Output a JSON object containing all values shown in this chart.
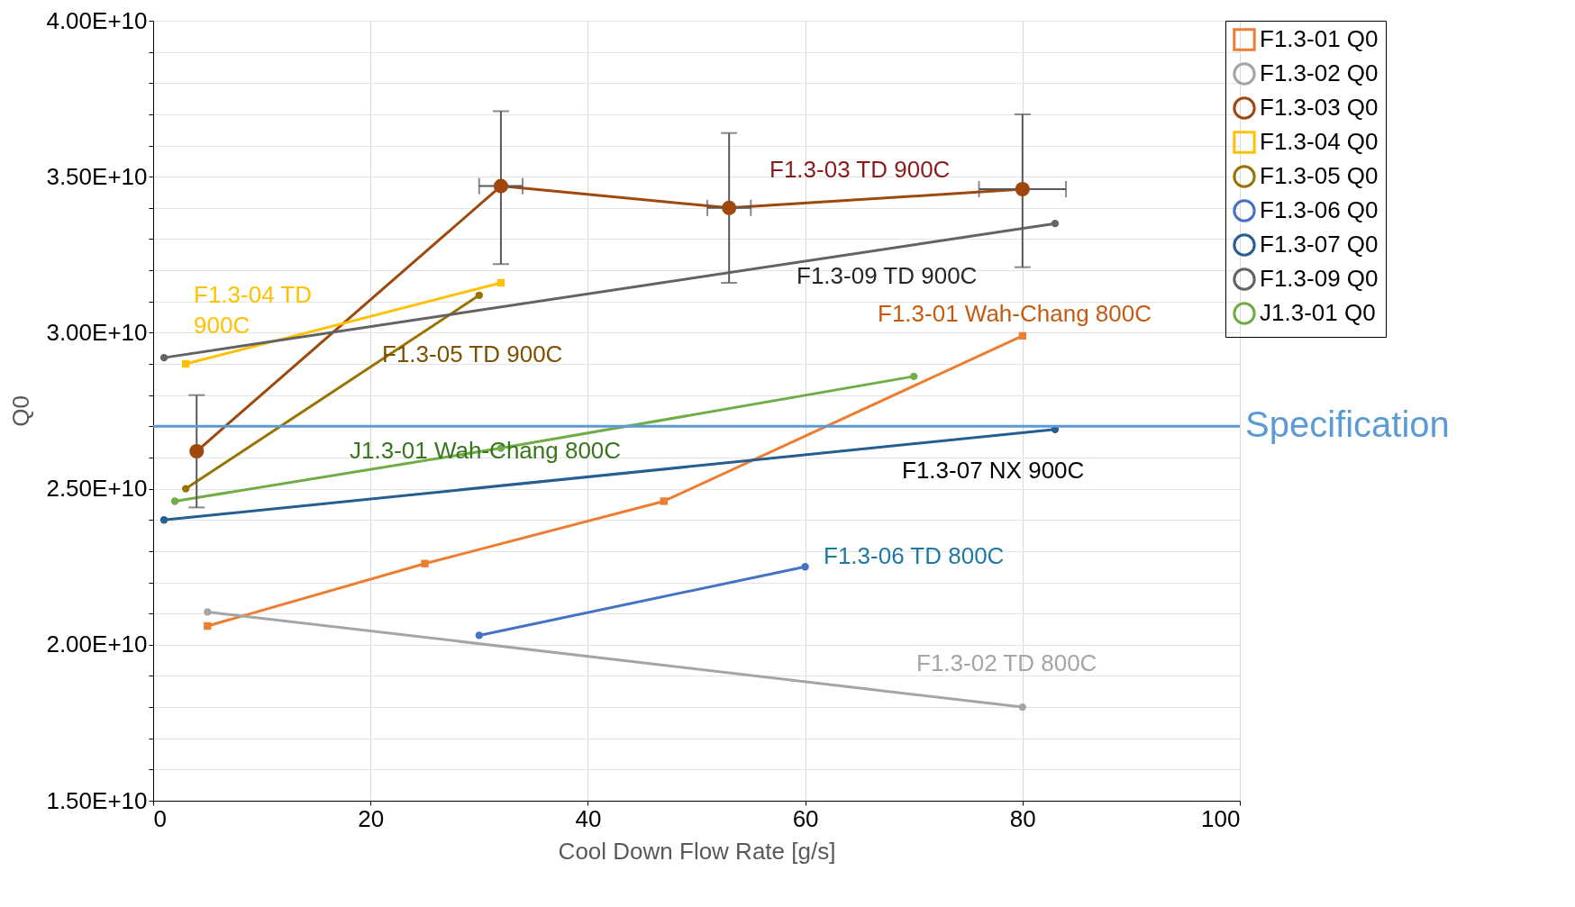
{
  "chart_data": {
    "type": "line",
    "xlabel": "Cool Down Flow Rate [g/s]",
    "ylabel": "Q0",
    "xlim": [
      0,
      100
    ],
    "xticks": [
      0,
      20,
      40,
      60,
      80,
      100
    ],
    "ylim": [
      15000000000,
      40000000000
    ],
    "yticks": [
      {
        "value": 15000000000,
        "label": "1.50E+10"
      },
      {
        "value": 16000000000,
        "label": null
      },
      {
        "value": 17000000000,
        "label": null
      },
      {
        "value": 18000000000,
        "label": null
      },
      {
        "value": 19000000000,
        "label": null
      },
      {
        "value": 20000000000,
        "label": "2.00E+10"
      },
      {
        "value": 21000000000,
        "label": null
      },
      {
        "value": 22000000000,
        "label": null
      },
      {
        "value": 23000000000,
        "label": null
      },
      {
        "value": 24000000000,
        "label": null
      },
      {
        "value": 25000000000,
        "label": "2.50E+10"
      },
      {
        "value": 26000000000,
        "label": null
      },
      {
        "value": 27000000000,
        "label": null
      },
      {
        "value": 28000000000,
        "label": null
      },
      {
        "value": 29000000000,
        "label": null
      },
      {
        "value": 30000000000,
        "label": "3.00E+10"
      },
      {
        "value": 31000000000,
        "label": null
      },
      {
        "value": 32000000000,
        "label": null
      },
      {
        "value": 33000000000,
        "label": null
      },
      {
        "value": 34000000000,
        "label": null
      },
      {
        "value": 35000000000,
        "label": "3.50E+10"
      },
      {
        "value": 36000000000,
        "label": null
      },
      {
        "value": 37000000000,
        "label": null
      },
      {
        "value": 38000000000,
        "label": null
      },
      {
        "value": 39000000000,
        "label": null
      },
      {
        "value": 40000000000,
        "label": "4.00E+10"
      }
    ],
    "grid": true,
    "legend": "top right",
    "series": [
      {
        "name": "F1.3-01 Q0",
        "color": "#ed7d31",
        "marker": "square",
        "x": [
          5,
          25,
          47,
          80
        ],
        "values": [
          20600000000,
          22600000000,
          24600000000,
          29900000000
        ]
      },
      {
        "name": "F1.3-02 Q0",
        "color": "#a5a5a5",
        "marker": "circle",
        "x": [
          5,
          80
        ],
        "values": [
          21050000000,
          18000000000
        ]
      },
      {
        "name": "F1.3-03 Q0",
        "color": "#9e480e",
        "marker": "circle",
        "x": [
          4,
          32,
          53,
          80
        ],
        "values": [
          26200000000,
          34700000000,
          34000000000,
          34600000000
        ],
        "errors": [
          [
            24400000000,
            28000000000
          ],
          [
            32200000000,
            37100000000
          ],
          [
            31600000000,
            36400000000
          ],
          [
            32100000000,
            37000000000
          ]
        ],
        "xerrors": [
          null,
          2,
          2,
          4
        ]
      },
      {
        "name": "F1.3-04 Q0",
        "color": "#ffc000",
        "marker": "square",
        "x": [
          3,
          32
        ],
        "values": [
          29000000000,
          31600000000
        ]
      },
      {
        "name": "F1.3-05 Q0",
        "color": "#997300",
        "marker": "circle",
        "x": [
          3,
          30
        ],
        "values": [
          25000000000,
          31200000000
        ]
      },
      {
        "name": "F1.3-06 Q0",
        "color": "#4472c4",
        "marker": "circle",
        "x": [
          30,
          60
        ],
        "values": [
          20300000000,
          22500000000
        ]
      },
      {
        "name": "F1.3-07 Q0",
        "color": "#255e91",
        "marker": "circle",
        "x": [
          1,
          83
        ],
        "values": [
          24000000000,
          26900000000
        ]
      },
      {
        "name": "F1.3-09 Q0",
        "color": "#636363",
        "marker": "circle",
        "x": [
          1,
          83
        ],
        "values": [
          29200000000,
          33500000000
        ]
      },
      {
        "name": "J1.3-01 Q0",
        "color": "#70ad47",
        "marker": "circle",
        "x": [
          2,
          32,
          70
        ],
        "values": [
          24600000000,
          26300000000,
          28600000000
        ]
      }
    ],
    "ref_lines": [
      {
        "axis": "y",
        "value": 27000000000,
        "label": "Specification",
        "color": "#5b9bd5"
      }
    ],
    "annotations": [
      "F1.3-03 TD 900C",
      "F1.3-09 TD 900C",
      "F1.3-01 Wah-Chang 800C",
      "F1.3-04 TD\n900C",
      "F1.3-05 TD 900C",
      "J1.3-01 Wah-Chang 800C",
      "F1.3-07 NX 900C",
      "F1.3-06 TD 800C",
      "F1.3-02 TD 800C"
    ]
  }
}
